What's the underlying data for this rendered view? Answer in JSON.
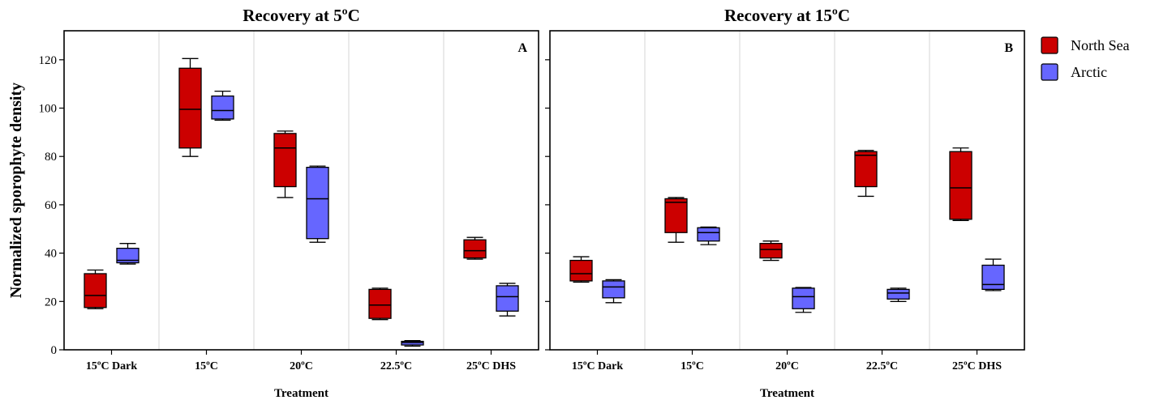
{
  "chart_data": {
    "type": "box",
    "ylabel": "Normalized sporophyte density",
    "ylim": [
      0,
      132
    ],
    "yticks": [
      0,
      20,
      40,
      60,
      80,
      100,
      120
    ],
    "grid": false,
    "legend_position": "right",
    "legend": [
      {
        "name": "North Sea",
        "color": "#cc0000"
      },
      {
        "name": "Arctic",
        "color": "#6666ff"
      }
    ],
    "panels": [
      {
        "title": "Recovery at 5ºC",
        "letter": "A",
        "xlabel": "Treatment",
        "categories": [
          "15ºC Dark",
          "15ºC",
          "20ºC",
          "22.5ºC",
          "25ºC DHS"
        ],
        "series": [
          {
            "name": "North Sea",
            "color": "#cc0000",
            "boxes": [
              {
                "min": 17,
                "q1": 17.5,
                "median": 22.5,
                "q3": 31.5,
                "max": 33
              },
              {
                "min": 80,
                "q1": 83.5,
                "median": 99.5,
                "q3": 116.5,
                "max": 120.5
              },
              {
                "min": 63,
                "q1": 67.5,
                "median": 83.5,
                "q3": 89.5,
                "max": 90.5
              },
              {
                "min": 12.5,
                "q1": 13,
                "median": 18.5,
                "q3": 25,
                "max": 25.5
              },
              {
                "min": 37.5,
                "q1": 38,
                "median": 41,
                "q3": 45.5,
                "max": 46.5
              }
            ]
          },
          {
            "name": "Arctic",
            "color": "#6666ff",
            "boxes": [
              {
                "min": 35.5,
                "q1": 36,
                "median": 37,
                "q3": 42,
                "max": 44
              },
              {
                "min": 95,
                "q1": 95.5,
                "median": 99,
                "q3": 105,
                "max": 107
              },
              {
                "min": 44.5,
                "q1": 46,
                "median": 62.5,
                "q3": 75.5,
                "max": 76
              },
              {
                "min": 1.5,
                "q1": 2,
                "median": 3,
                "q3": 3.5,
                "max": 3.8
              },
              {
                "min": 14,
                "q1": 16,
                "median": 22,
                "q3": 26.5,
                "max": 27.5
              }
            ]
          }
        ]
      },
      {
        "title": "Recovery at 15ºC",
        "letter": "B",
        "xlabel": "Treatment",
        "categories": [
          "15ºC Dark",
          "15ºC",
          "20ºC",
          "22.5ºC",
          "25ºC DHS"
        ],
        "series": [
          {
            "name": "North Sea",
            "color": "#cc0000",
            "boxes": [
              {
                "min": 28,
                "q1": 28.5,
                "median": 31.5,
                "q3": 37,
                "max": 38.5
              },
              {
                "min": 44.5,
                "q1": 48.5,
                "median": 61,
                "q3": 62.5,
                "max": 63
              },
              {
                "min": 37,
                "q1": 38,
                "median": 41.5,
                "q3": 44,
                "max": 45
              },
              {
                "min": 63.5,
                "q1": 67.5,
                "median": 80.5,
                "q3": 82,
                "max": 82.5
              },
              {
                "min": 53.5,
                "q1": 54,
                "median": 67,
                "q3": 82,
                "max": 83.5
              }
            ]
          },
          {
            "name": "Arctic",
            "color": "#6666ff",
            "boxes": [
              {
                "min": 19.5,
                "q1": 21.5,
                "median": 26,
                "q3": 28.5,
                "max": 29
              },
              {
                "min": 43.5,
                "q1": 45,
                "median": 48.5,
                "q3": 50.5,
                "max": 50.8
              },
              {
                "min": 15.5,
                "q1": 17,
                "median": 22,
                "q3": 25.5,
                "max": 25.8
              },
              {
                "min": 20,
                "q1": 21,
                "median": 23.5,
                "q3": 25,
                "max": 25.5
              },
              {
                "min": 24.5,
                "q1": 25,
                "median": 27,
                "q3": 35,
                "max": 37.5
              }
            ]
          }
        ]
      }
    ]
  }
}
